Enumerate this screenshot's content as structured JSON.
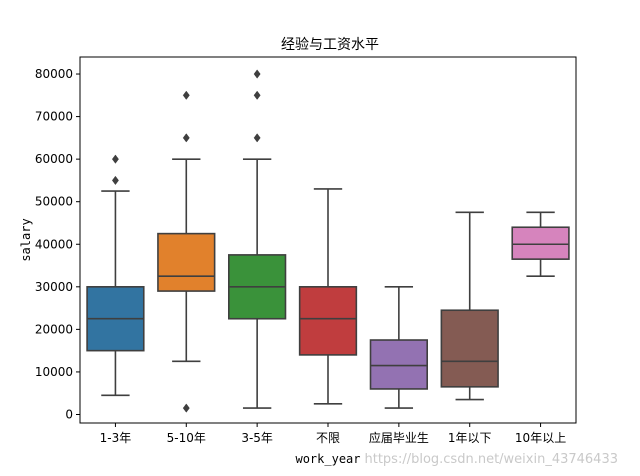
{
  "chart_data": {
    "type": "box",
    "title": "经验与工资水平",
    "xlabel": "work_year",
    "ylabel": "salary",
    "ylim": [
      -2000,
      84000
    ],
    "yticks": [
      0,
      10000,
      20000,
      30000,
      40000,
      50000,
      60000,
      70000,
      80000
    ],
    "grid": false,
    "categories": [
      "1-3年",
      "5-10年",
      "3-5年",
      "不限",
      "应届毕业生",
      "1年以下",
      "10年以上"
    ],
    "boxes": [
      {
        "category": "1-3年",
        "color": "#3274a1",
        "whisker_low": 4500,
        "q1": 15000,
        "median": 22500,
        "q3": 30000,
        "whisker_high": 52500,
        "outliers": [
          55000,
          60000
        ]
      },
      {
        "category": "5-10年",
        "color": "#e1812c",
        "whisker_low": 12500,
        "q1": 29000,
        "median": 32500,
        "q3": 42500,
        "whisker_high": 60000,
        "outliers": [
          1500,
          65000,
          75000
        ]
      },
      {
        "category": "3-5年",
        "color": "#3a923a",
        "whisker_low": 1500,
        "q1": 22500,
        "median": 30000,
        "q3": 37500,
        "whisker_high": 60000,
        "outliers": [
          65000,
          75000,
          80000
        ]
      },
      {
        "category": "不限",
        "color": "#c03d3e",
        "whisker_low": 2500,
        "q1": 14000,
        "median": 22500,
        "q3": 30000,
        "whisker_high": 53000,
        "outliers": []
      },
      {
        "category": "应届毕业生",
        "color": "#9372b2",
        "whisker_low": 1500,
        "q1": 6000,
        "median": 11500,
        "q3": 17500,
        "whisker_high": 30000,
        "outliers": []
      },
      {
        "category": "1年以下",
        "color": "#845b53",
        "whisker_low": 3500,
        "q1": 6500,
        "median": 12500,
        "q3": 24500,
        "whisker_high": 47500,
        "outliers": []
      },
      {
        "category": "10年以上",
        "color": "#d684bd",
        "whisker_low": 32500,
        "q1": 36500,
        "median": 40000,
        "q3": 44000,
        "whisker_high": 47500,
        "outliers": []
      }
    ]
  },
  "watermark": "https://blog.csdn.net/weixin_43746433"
}
